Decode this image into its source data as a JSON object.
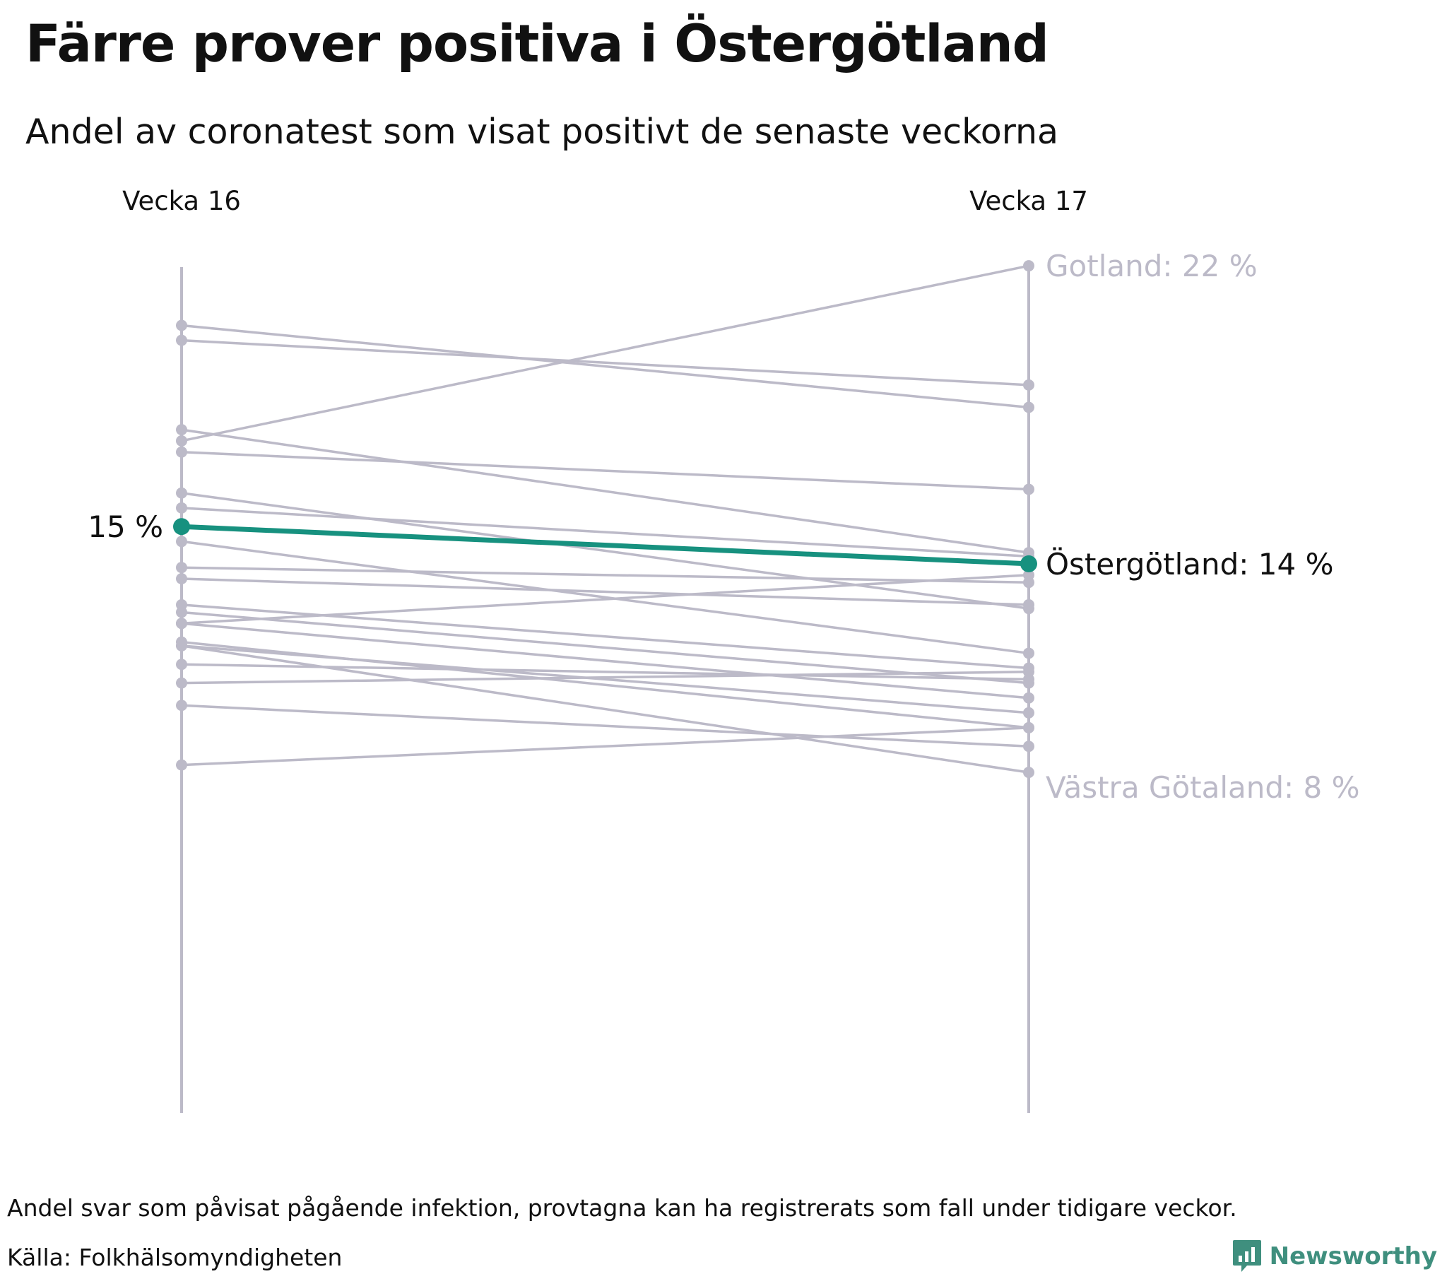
{
  "title": "Färre prover positiva i Östergötland",
  "subtitle": "Andel av coronatest som visat positivt de senaste veckorna",
  "footnote": "Andel svar som påvisat pågående infektion, provtagna kan ha registrerats som fall under tidigare veckor.",
  "source": "Källa: Folkhälsomyndigheten",
  "brand": "Newsworthy",
  "colors": {
    "highlight": "#17917f",
    "muted": "#bcbac8",
    "text": "#111111",
    "brand": "#3f8f7e"
  },
  "chart_data": {
    "type": "slope",
    "x_labels": [
      "Vecka 16",
      "Vecka 17"
    ],
    "ylim": [
      0,
      22
    ],
    "unit": "%",
    "highlight": {
      "name": "Östergötland",
      "values": [
        15,
        14
      ],
      "start_label": "15 %",
      "end_label": "Östergötland: 14 %"
    },
    "annotations": [
      {
        "text": "Gotland: 22 %",
        "week17": 22
      },
      {
        "text": "Västra Götaland: 8 %",
        "week17": 8
      }
    ],
    "series": [
      {
        "values": [
          20.0,
          18.8
        ]
      },
      {
        "values": [
          20.4,
          18.2
        ]
      },
      {
        "values": [
          17.3,
          22.0
        ]
      },
      {
        "values": [
          17.6,
          14.3
        ]
      },
      {
        "values": [
          17.0,
          16.0
        ]
      },
      {
        "values": [
          15.9,
          12.8
        ]
      },
      {
        "values": [
          15.5,
          14.2
        ]
      },
      {
        "values": [
          14.6,
          11.6
        ]
      },
      {
        "values": [
          13.9,
          13.5
        ]
      },
      {
        "values": [
          13.6,
          12.9
        ]
      },
      {
        "values": [
          12.9,
          11.2
        ]
      },
      {
        "values": [
          12.7,
          10.8
        ]
      },
      {
        "values": [
          12.4,
          13.7
        ]
      },
      {
        "values": [
          12.4,
          10.4
        ]
      },
      {
        "values": [
          11.9,
          9.6
        ]
      },
      {
        "values": [
          11.8,
          10.0
        ]
      },
      {
        "values": [
          11.3,
          10.9
        ]
      },
      {
        "values": [
          10.8,
          11.1
        ]
      },
      {
        "values": [
          10.2,
          9.1
        ]
      },
      {
        "values": [
          8.6,
          9.6
        ]
      },
      {
        "values": [
          11.8,
          8.4
        ]
      }
    ]
  }
}
